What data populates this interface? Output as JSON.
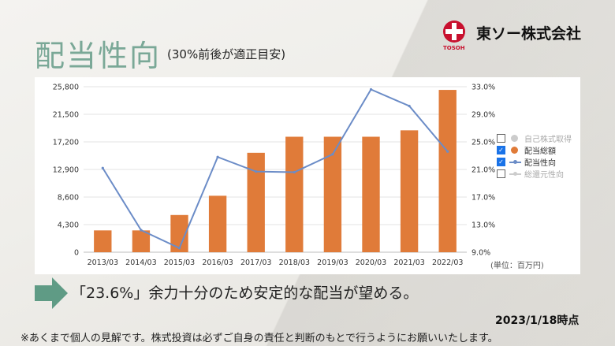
{
  "page": {
    "title": "配当性向",
    "subtitle": "(30%前後が適正目安)",
    "company": {
      "name": "東ソー株式会社",
      "sub": "TOSOH",
      "brand_color": "#c8102e"
    },
    "message": "「23.6%」余力十分のため安定的な配当が望める。",
    "date": "2023/1/18時点",
    "disclaimer": "※あくまで個人の見解です。株式投資は必ずご自身の責任と判断のもとで行うようにお願いいたします。",
    "unit": "(単位：百万円)",
    "accent_color": "#5f9b85"
  },
  "legend": [
    {
      "label": "自己株式取得",
      "checked": false,
      "symbol": "dot",
      "color": "#cccccc"
    },
    {
      "label": "配当総額",
      "checked": true,
      "symbol": "dot",
      "color": "#e07b39"
    },
    {
      "label": "配当性向",
      "checked": true,
      "symbol": "line",
      "color": "#6b8cc7"
    },
    {
      "label": "総還元性向",
      "checked": false,
      "symbol": "line",
      "color": "#cccccc"
    }
  ],
  "chart_data": {
    "type": "bar",
    "categories": [
      "2013/03",
      "2014/03",
      "2015/03",
      "2016/03",
      "2017/03",
      "2018/03",
      "2019/03",
      "2020/03",
      "2021/03",
      "2022/03"
    ],
    "left_axis": {
      "ticks": [
        "0",
        "4,300",
        "8,600",
        "12,900",
        "17,200",
        "21,500",
        "25,800"
      ],
      "range": [
        0,
        25800
      ]
    },
    "right_axis": {
      "ticks": [
        "9.0%",
        "13.0%",
        "17.0%",
        "21.0%",
        "25.0%",
        "29.0%",
        "33.0%"
      ],
      "range": [
        9.0,
        33.0
      ]
    },
    "series": [
      {
        "name": "配当総額",
        "kind": "bar",
        "color": "#e07b39",
        "values": [
          3400,
          3400,
          5800,
          8800,
          15500,
          18000,
          18000,
          18000,
          19000,
          25300
        ]
      },
      {
        "name": "配当性向",
        "kind": "line",
        "color": "#6b8cc7",
        "values": [
          21.2,
          12.2,
          9.6,
          22.8,
          20.7,
          20.6,
          23.2,
          32.6,
          30.2,
          23.6
        ]
      }
    ]
  }
}
